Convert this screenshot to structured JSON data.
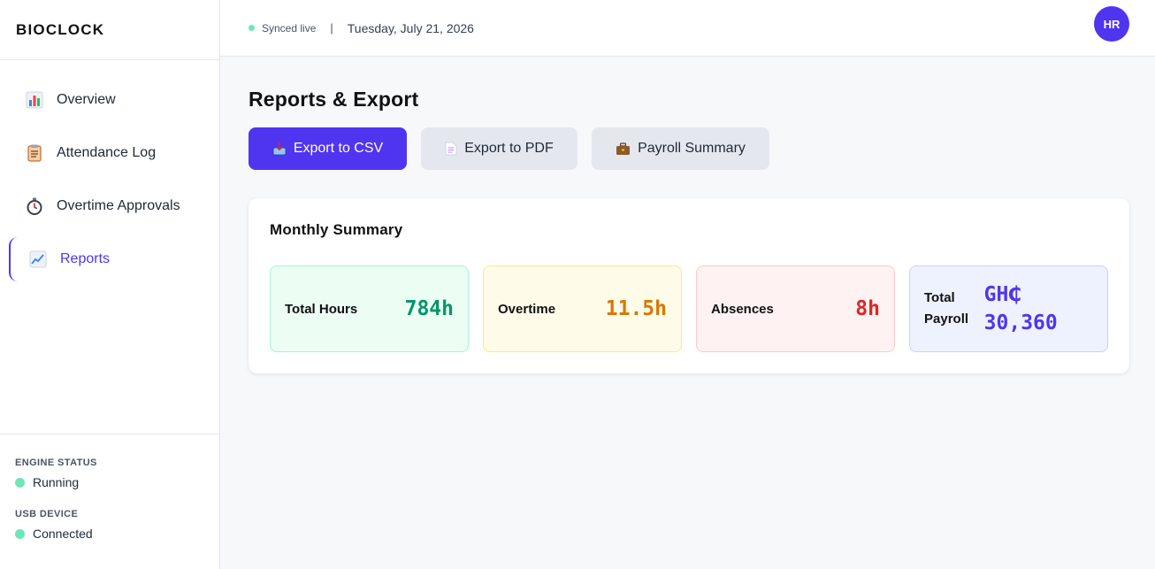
{
  "app": {
    "brand": "BIOCLOCK"
  },
  "sidebar": {
    "items": [
      {
        "label": "Overview",
        "icon": "bar-chart-icon"
      },
      {
        "label": "Attendance Log",
        "icon": "clipboard-icon"
      },
      {
        "label": "Overtime Approvals",
        "icon": "stopwatch-icon"
      },
      {
        "label": "Reports",
        "icon": "trend-chart-icon",
        "active": true
      }
    ],
    "engine_status": {
      "label": "ENGINE STATUS",
      "value": "Running"
    },
    "usb_device": {
      "label": "USB DEVICE",
      "value": "Connected"
    }
  },
  "topbar": {
    "sync_status": "Synced live",
    "separator": "|",
    "date": "Tuesday, July 21, 2026",
    "avatar_initials": "HR"
  },
  "main": {
    "title": "Reports & Export",
    "actions": {
      "csv": {
        "label": "Export to CSV",
        "icon": "inbox-tray-icon"
      },
      "pdf": {
        "label": "Export to PDF",
        "icon": "document-icon"
      },
      "payroll": {
        "label": "Payroll Summary",
        "icon": "briefcase-icon"
      }
    },
    "summary": {
      "title": "Monthly Summary",
      "tiles": {
        "hours": {
          "label": "Total Hours",
          "value": "784h"
        },
        "overtime": {
          "label": "Overtime",
          "value": "11.5h"
        },
        "absences": {
          "label": "Absences",
          "value": "8h"
        },
        "payroll": {
          "label": "Total Payroll",
          "value": "GH₵ 30,360"
        }
      }
    }
  },
  "colors": {
    "accent": "#4f35f0",
    "status_green": "#6ee7b7",
    "hours_green": "#059669",
    "overtime_orange": "#d97706",
    "absence_red": "#dc2626"
  }
}
